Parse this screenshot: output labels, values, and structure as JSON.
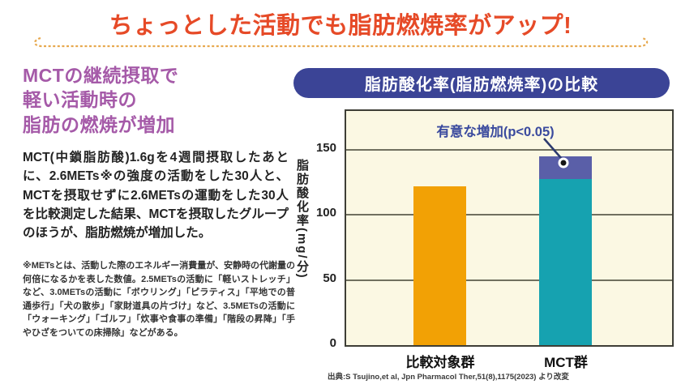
{
  "header": {
    "title": "ちょっとした活動でも脂肪燃焼率がアップ!"
  },
  "left": {
    "heading_lines": [
      "MCTの継続摂取で",
      "軽い活動時の",
      "脂肪の燃焼が増加"
    ],
    "body": "MCT(中鎖脂肪酸)1.6gを4週間摂取したあとに、2.6METs※の強度の活動をした30人と、MCTを摂取せずに2.6METsの運動をした30人を比較測定した結果、MCTを摂取したグループのほうが、脂肪燃焼が増加した。",
    "footnote": "※METsとは、活動した際のエネルギー消費量が、安静時の代謝量の何倍になるかを表した数値。2.5METsの活動に「軽いストレッチ」など、3.0METsの活動に「ボウリング」「ピラティス」「平地での普通歩行」「犬の散歩」「家財道具の片づけ」など、3.5METsの活動に「ウォーキング」「ゴルフ」「炊事や食事の準備」「階段の昇降」「手やひざをついての床掃除」などがある。"
  },
  "chart_data": {
    "type": "bar",
    "title": "脂肪酸化率(脂肪燃焼率)の比較",
    "ylabel": "脂肪酸化率(mg/分)",
    "ylim": [
      0,
      180
    ],
    "yticks": [
      0,
      50,
      100,
      150
    ],
    "grid": true,
    "categories": [
      "比較対象群",
      "MCT群"
    ],
    "series": [
      {
        "name": "base",
        "values": [
          122,
          128
        ]
      },
      {
        "name": "increase",
        "values": [
          0,
          17
        ]
      }
    ],
    "totals": [
      122,
      145
    ],
    "annotation": "有意な増加(p<0.05)",
    "colors": {
      "control_bar": "#f2a105",
      "mct_base_bar": "#16a2b0",
      "mct_increase_bar": "#5a5fa8",
      "banner_bg": "#3b4496",
      "annotation_text": "#3a4a9e",
      "title_red": "#e64a27",
      "heading_purple": "#a55aa8",
      "plot_bg": "#fbf8e3"
    }
  },
  "source": "出典:S Tsujino,et al, Jpn Pharmacol Ther,51(8),1175(2023) より改変"
}
